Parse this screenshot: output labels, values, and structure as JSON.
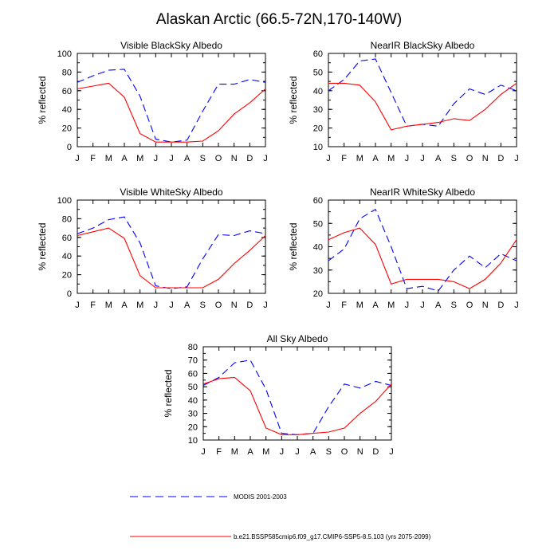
{
  "figure": {
    "title": "Alaskan Arctic (66.5-72N,170-140W)"
  },
  "legend": {
    "entries": [
      {
        "label": "MODIS 2001-2003",
        "color": "#0000ff",
        "style": "dashed"
      },
      {
        "label": "b.e21.BSSP585cmip6.f09_g17.CMIP6-SSP5-8.5.103 (yrs 2075-2099)",
        "color": "#ff0000",
        "style": "solid"
      }
    ]
  },
  "chart_data": [
    {
      "type": "line",
      "title": "Visible BlackSky Albedo",
      "xlabel": "",
      "ylabel": "% reflected",
      "categories": [
        "J",
        "F",
        "M",
        "A",
        "M",
        "J",
        "J",
        "A",
        "S",
        "O",
        "N",
        "D",
        "J"
      ],
      "ylim": [
        0,
        100
      ],
      "yticks": [
        0,
        20,
        40,
        60,
        80,
        100
      ],
      "series": [
        {
          "name": "MODIS 2001-2003",
          "values": [
            69,
            76,
            82,
            83,
            54,
            8,
            5,
            7,
            38,
            67,
            67,
            72,
            69
          ]
        },
        {
          "name": "b.e21.BSSP585cmip6.f09_g17.CMIP6-SSP5-8.5.103 (yrs 2075-2099)",
          "values": [
            62,
            65,
            68,
            53,
            14,
            5,
            5,
            5,
            6,
            17,
            35,
            47,
            62
          ]
        }
      ]
    },
    {
      "type": "line",
      "title": "NearIR BlackSky Albedo",
      "xlabel": "",
      "ylabel": "% reflected",
      "categories": [
        "J",
        "F",
        "M",
        "A",
        "M",
        "J",
        "J",
        "A",
        "S",
        "O",
        "N",
        "D",
        "J"
      ],
      "ylim": [
        10,
        60
      ],
      "yticks": [
        10,
        20,
        30,
        40,
        50,
        60
      ],
      "series": [
        {
          "name": "MODIS 2001-2003",
          "values": [
            40,
            46,
            56,
            57,
            39,
            21,
            22,
            21,
            33,
            41,
            38,
            43,
            40
          ]
        },
        {
          "name": "b.e21.BSSP585cmip6.f09_g17.CMIP6-SSP5-8.5.103 (yrs 2075-2099)",
          "values": [
            44,
            44,
            43,
            34,
            19,
            21,
            22,
            23,
            25,
            24,
            30,
            38,
            44
          ]
        }
      ]
    },
    {
      "type": "line",
      "title": "Visible WhiteSky Albedo",
      "xlabel": "",
      "ylabel": "% reflected",
      "categories": [
        "J",
        "F",
        "M",
        "A",
        "M",
        "J",
        "J",
        "A",
        "S",
        "O",
        "N",
        "D",
        "J"
      ],
      "ylim": [
        0,
        100
      ],
      "yticks": [
        0,
        20,
        40,
        60,
        80,
        100
      ],
      "series": [
        {
          "name": "MODIS 2001-2003",
          "values": [
            64,
            70,
            79,
            82,
            54,
            8,
            5,
            7,
            37,
            63,
            62,
            67,
            64
          ]
        },
        {
          "name": "b.e21.BSSP585cmip6.f09_g17.CMIP6-SSP5-8.5.103 (yrs 2075-2099)",
          "values": [
            62,
            66,
            70,
            59,
            19,
            6,
            6,
            6,
            6,
            15,
            32,
            46,
            62
          ]
        }
      ]
    },
    {
      "type": "line",
      "title": "NearIR WhiteSky Albedo",
      "xlabel": "",
      "ylabel": "% reflected",
      "categories": [
        "J",
        "F",
        "M",
        "A",
        "M",
        "J",
        "J",
        "A",
        "S",
        "O",
        "N",
        "D",
        "J"
      ],
      "ylim": [
        20,
        60
      ],
      "yticks": [
        20,
        30,
        40,
        50,
        60
      ],
      "series": [
        {
          "name": "MODIS 2001-2003",
          "values": [
            34,
            39,
            52,
            56,
            40,
            22,
            23,
            21,
            30,
            36,
            31,
            37,
            34
          ]
        },
        {
          "name": "b.e21.BSSP585cmip6.f09_g17.CMIP6-SSP5-8.5.103 (yrs 2075-2099)",
          "values": [
            43,
            46,
            48,
            41,
            24,
            26,
            26,
            26,
            25,
            22,
            26,
            33,
            43
          ]
        }
      ]
    },
    {
      "type": "line",
      "title": "All Sky Albedo",
      "xlabel": "",
      "ylabel": "% reflected",
      "categories": [
        "J",
        "F",
        "M",
        "A",
        "M",
        "J",
        "J",
        "A",
        "S",
        "O",
        "N",
        "D",
        "J"
      ],
      "ylim": [
        10,
        80
      ],
      "yticks": [
        10,
        20,
        30,
        40,
        50,
        60,
        70,
        80
      ],
      "series": [
        {
          "name": "MODIS 2001-2003",
          "values": [
            51,
            57,
            68,
            70,
            48,
            15,
            14,
            15,
            35,
            52,
            49,
            54,
            51
          ]
        },
        {
          "name": "b.e21.BSSP585cmip6.f09_g17.CMIP6-SSP5-8.5.103 (yrs 2075-2099)",
          "values": [
            52,
            56,
            57,
            47,
            19,
            14,
            14,
            15,
            16,
            19,
            30,
            39,
            52
          ]
        }
      ]
    }
  ]
}
